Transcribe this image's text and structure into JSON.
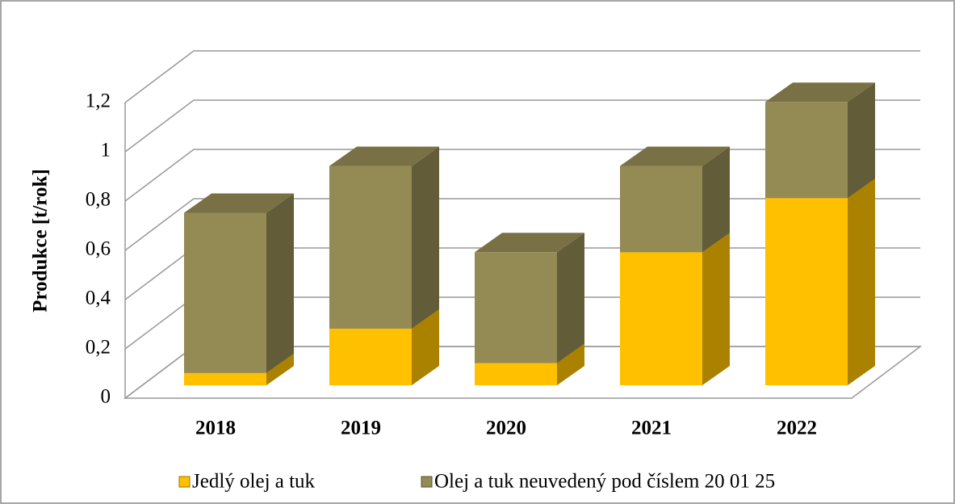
{
  "chart_data": {
    "type": "bar3d_stacked",
    "ylabel": "Produkce [t/rok]",
    "categories": [
      "2018",
      "2019",
      "2020",
      "2021",
      "2022"
    ],
    "series": [
      {
        "name": "Jedlý olej a tuk",
        "color": "#ffc000",
        "values": [
          0.05,
          0.23,
          0.09,
          0.54,
          0.76
        ]
      },
      {
        "name": "Olej a tuk neuvedený pod číslem 20 01 25",
        "color": "#948a54",
        "values": [
          0.65,
          0.66,
          0.45,
          0.35,
          0.39
        ]
      }
    ],
    "ylim": [
      0,
      1.2
    ],
    "yticks": [
      0,
      {
        "value": 0.2,
        "label": "0,2"
      },
      {
        "value": 0.4,
        "label": "0,4"
      },
      {
        "value": 0.6,
        "label": "0,6"
      },
      {
        "value": 0.8,
        "label": "0,8"
      },
      1,
      {
        "value": 1.2,
        "label": "1,2"
      }
    ],
    "grid": true,
    "legend": "bottom"
  }
}
